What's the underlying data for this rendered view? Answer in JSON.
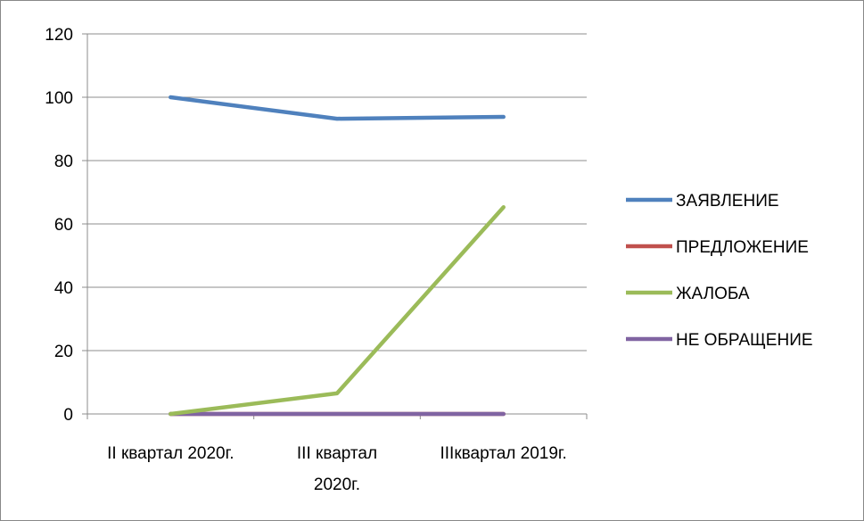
{
  "chart_data": {
    "type": "line",
    "categories": [
      [
        "II квартал 2020г."
      ],
      [
        "III квартал",
        "2020г."
      ],
      [
        "IIIквартал 2019г."
      ]
    ],
    "ylim": [
      0,
      120
    ],
    "yticks": [
      0,
      20,
      40,
      60,
      80,
      100,
      120
    ],
    "grid": true,
    "legend_position": "right",
    "series": [
      {
        "name": "ЗАЯВЛЕНИЕ",
        "color": "#4F81BD",
        "values": [
          100,
          93.2,
          93.8
        ]
      },
      {
        "name": "ПРЕДЛОЖЕНИЕ",
        "color": "#C0504D",
        "values": [
          0,
          0,
          0
        ]
      },
      {
        "name": "ЖАЛОБА",
        "color": "#9BBB59",
        "values": [
          0,
          6.5,
          65.3
        ]
      },
      {
        "name": "НЕ ОБРАЩЕНИЕ",
        "color": "#8064A2",
        "values": [
          0,
          0,
          0
        ]
      }
    ]
  }
}
